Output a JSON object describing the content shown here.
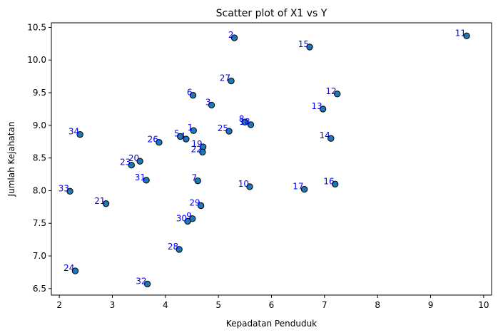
{
  "chart_data": {
    "type": "scatter",
    "title": "Scatter plot of X1 vs Y",
    "xlabel": "Kepadatan Penduduk",
    "ylabel": "Jumlah Kejahatan",
    "xlim": [
      1.85,
      10.15
    ],
    "ylim": [
      6.4,
      10.57
    ],
    "xticks": [
      2,
      3,
      4,
      5,
      6,
      7,
      8,
      9,
      10
    ],
    "yticks": [
      6.5,
      7.0,
      7.5,
      8.0,
      8.5,
      9.0,
      9.5,
      10.0,
      10.5
    ],
    "grid": false,
    "point_color": "#1f77b4",
    "edge_color": "#000000",
    "label_color": "#0000ff",
    "points": [
      {
        "label": "1",
        "x": 4.53,
        "y": 8.92
      },
      {
        "label": "2",
        "x": 5.3,
        "y": 10.34
      },
      {
        "label": "3",
        "x": 4.87,
        "y": 9.31
      },
      {
        "label": "4",
        "x": 4.39,
        "y": 8.79
      },
      {
        "label": "5",
        "x": 4.28,
        "y": 8.83
      },
      {
        "label": "6",
        "x": 4.52,
        "y": 9.46
      },
      {
        "label": "7",
        "x": 4.61,
        "y": 8.15
      },
      {
        "label": "8",
        "x": 5.5,
        "y": 9.05
      },
      {
        "label": "9",
        "x": 4.51,
        "y": 7.57
      },
      {
        "label": "10",
        "x": 5.59,
        "y": 8.06
      },
      {
        "label": "11",
        "x": 9.68,
        "y": 10.37
      },
      {
        "label": "12",
        "x": 7.24,
        "y": 9.48
      },
      {
        "label": "13",
        "x": 6.97,
        "y": 9.25
      },
      {
        "label": "14",
        "x": 7.12,
        "y": 8.8
      },
      {
        "label": "15",
        "x": 6.72,
        "y": 10.2
      },
      {
        "label": "16",
        "x": 7.2,
        "y": 8.1
      },
      {
        "label": "17",
        "x": 6.62,
        "y": 8.02
      },
      {
        "label": "18",
        "x": 5.61,
        "y": 9.01
      },
      {
        "label": "19",
        "x": 4.71,
        "y": 8.67
      },
      {
        "label": "20",
        "x": 3.52,
        "y": 8.45
      },
      {
        "label": "21",
        "x": 2.88,
        "y": 7.8
      },
      {
        "label": "22",
        "x": 4.7,
        "y": 8.59
      },
      {
        "label": "23",
        "x": 3.36,
        "y": 8.39
      },
      {
        "label": "24",
        "x": 2.3,
        "y": 6.77
      },
      {
        "label": "25",
        "x": 5.2,
        "y": 8.91
      },
      {
        "label": "26",
        "x": 3.88,
        "y": 8.74
      },
      {
        "label": "27",
        "x": 5.24,
        "y": 9.68
      },
      {
        "label": "28",
        "x": 4.26,
        "y": 7.1
      },
      {
        "label": "29",
        "x": 4.67,
        "y": 7.77
      },
      {
        "label": "30",
        "x": 4.42,
        "y": 7.53
      },
      {
        "label": "31",
        "x": 3.64,
        "y": 8.16
      },
      {
        "label": "32",
        "x": 3.66,
        "y": 6.57
      },
      {
        "label": "33",
        "x": 2.2,
        "y": 7.99
      },
      {
        "label": "34",
        "x": 2.39,
        "y": 8.86
      }
    ]
  }
}
